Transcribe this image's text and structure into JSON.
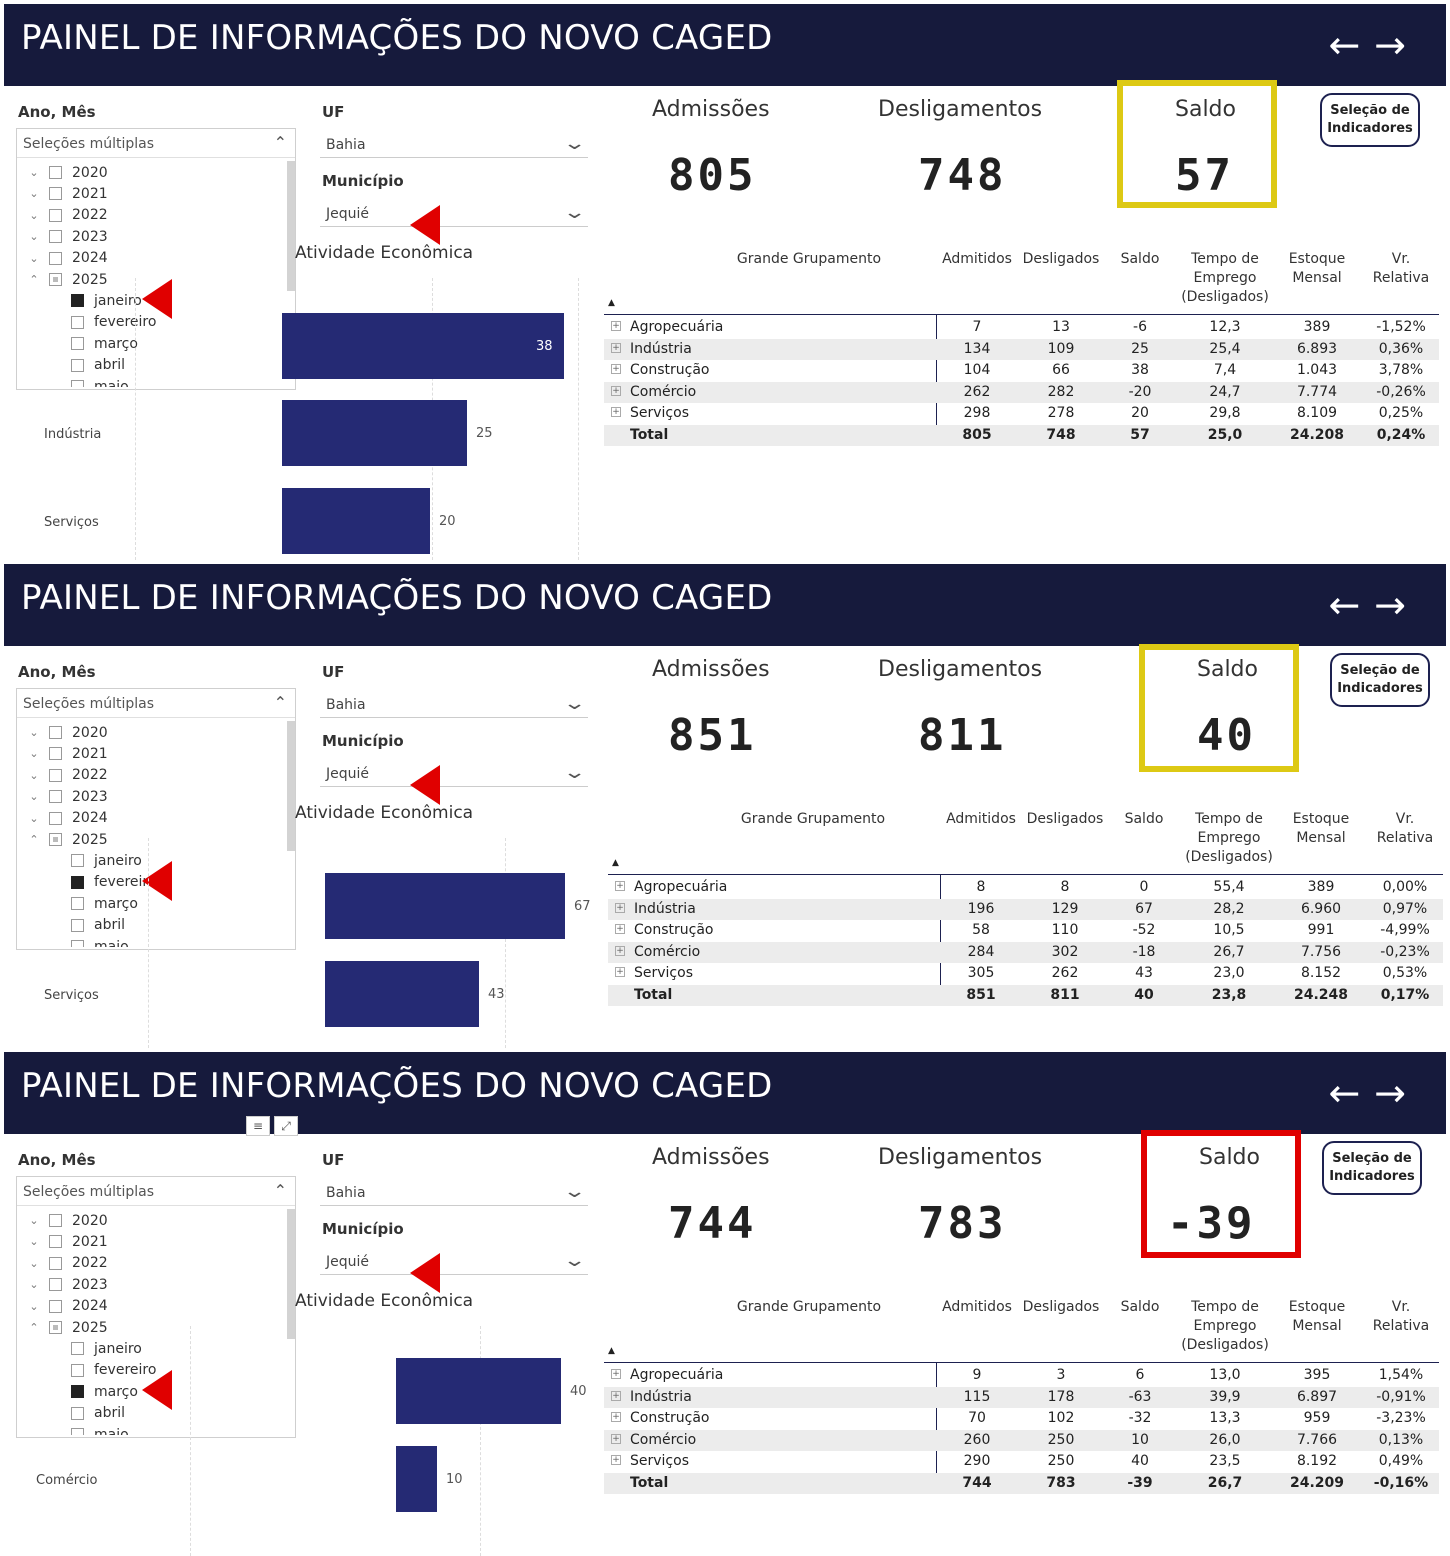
{
  "common": {
    "title": "PAINEL DE INFORMAÇÕES DO NOVO CAGED",
    "arrow_back": "←",
    "arrow_forward": "→",
    "ano_mes_label": "Ano, Mês",
    "uf_label": "UF",
    "municipio_label": "Município",
    "multi_select": "Seleções múltiplas",
    "uf_value": "Bahia",
    "municipio_value": "Jequié",
    "chart_title": "Atividade Econômica",
    "kpi_admissoes": "Admissões",
    "kpi_desligamentos": "Desligamentos",
    "kpi_saldo": "Saldo",
    "selecao_button_line1": "Seleção de",
    "selecao_button_line2": "Indicadores",
    "table_headers": {
      "grupo": "Grande Grupamento",
      "admitidos": "Admitidos",
      "desligados": "Desligados",
      "saldo": "Saldo",
      "tempo_l1": "Tempo de",
      "tempo_l2": "Emprego",
      "tempo_l3": "(Desligados)",
      "estoque_l1": "Estoque",
      "estoque_l2": "Mensal",
      "vr_l1": "Vr.",
      "vr_l2": "Relativa"
    },
    "years": [
      "2020",
      "2021",
      "2022",
      "2023",
      "2024",
      "2025"
    ],
    "months": [
      "janeiro",
      "fevereiro",
      "março",
      "abril",
      "maio"
    ],
    "colors": {
      "header_bg": "#161a3c",
      "bar": "#252a74",
      "highlight_yellow": "#ddc914",
      "highlight_red": "#e00000"
    }
  },
  "panels": [
    {
      "selected_month": "janeiro",
      "kpi": {
        "admissoes": "805",
        "desligamentos": "748",
        "saldo": "57"
      },
      "saldo_highlight": "yellow",
      "chart_bars": [
        {
          "label": "",
          "value": "38"
        },
        {
          "label": "Indústria",
          "value": "25"
        },
        {
          "label": "Serviços",
          "value": "20"
        }
      ],
      "rows": [
        [
          "Agropecuária",
          "7",
          "13",
          "-6",
          "12,3",
          "389",
          "-1,52%"
        ],
        [
          "Indústria",
          "134",
          "109",
          "25",
          "25,4",
          "6.893",
          "0,36%"
        ],
        [
          "Construção",
          "104",
          "66",
          "38",
          "7,4",
          "1.043",
          "3,78%"
        ],
        [
          "Comércio",
          "262",
          "282",
          "-20",
          "24,7",
          "7.774",
          "-0,26%"
        ],
        [
          "Serviços",
          "298",
          "278",
          "20",
          "29,8",
          "8.109",
          "0,25%"
        ]
      ],
      "total": [
        "Total",
        "805",
        "748",
        "57",
        "25,0",
        "24.208",
        "0,24%"
      ]
    },
    {
      "selected_month": "fevereiro",
      "kpi": {
        "admissoes": "851",
        "desligamentos": "811",
        "saldo": "40"
      },
      "saldo_highlight": "yellow",
      "chart_bars": [
        {
          "label": "",
          "value": "67"
        },
        {
          "label": "Serviços",
          "value": "43"
        }
      ],
      "rows": [
        [
          "Agropecuária",
          "8",
          "8",
          "0",
          "55,4",
          "389",
          "0,00%"
        ],
        [
          "Indústria",
          "196",
          "129",
          "67",
          "28,2",
          "6.960",
          "0,97%"
        ],
        [
          "Construção",
          "58",
          "110",
          "-52",
          "10,5",
          "991",
          "-4,99%"
        ],
        [
          "Comércio",
          "284",
          "302",
          "-18",
          "26,7",
          "7.756",
          "-0,23%"
        ],
        [
          "Serviços",
          "305",
          "262",
          "43",
          "23,0",
          "8.152",
          "0,53%"
        ]
      ],
      "total": [
        "Total",
        "851",
        "811",
        "40",
        "23,8",
        "24.248",
        "0,17%"
      ]
    },
    {
      "selected_month": "março",
      "kpi": {
        "admissoes": "744",
        "desligamentos": "783",
        "saldo": "-39"
      },
      "saldo_highlight": "red",
      "chart_bars": [
        {
          "label": "",
          "value": "40"
        },
        {
          "label": "Comércio",
          "value": "10"
        }
      ],
      "rows": [
        [
          "Agropecuária",
          "9",
          "3",
          "6",
          "13,0",
          "395",
          "1,54%"
        ],
        [
          "Indústria",
          "115",
          "178",
          "-63",
          "39,9",
          "6.897",
          "-0,91%"
        ],
        [
          "Construção",
          "70",
          "102",
          "-32",
          "13,3",
          "959",
          "-3,23%"
        ],
        [
          "Comércio",
          "260",
          "250",
          "10",
          "26,0",
          "7.766",
          "0,13%"
        ],
        [
          "Serviços",
          "290",
          "250",
          "40",
          "23,5",
          "8.192",
          "0,49%"
        ]
      ],
      "total": [
        "Total",
        "744",
        "783",
        "-39",
        "26,7",
        "24.209",
        "-0,16%"
      ]
    }
  ]
}
